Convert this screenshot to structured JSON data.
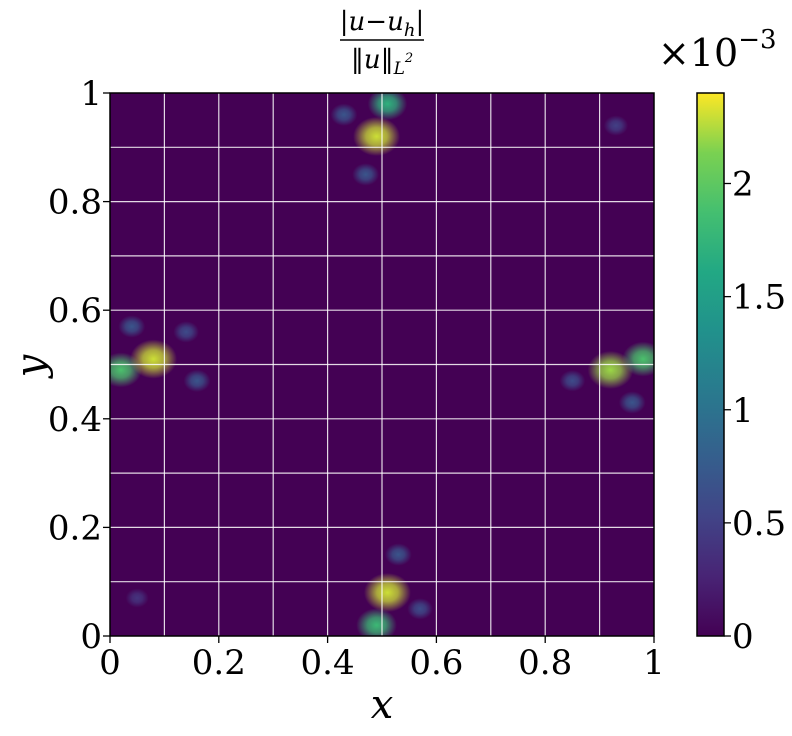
{
  "chart_data": {
    "type": "heatmap",
    "title": "|u−u_h| / ‖u‖_{L²}",
    "title_parts": {
      "numerator": "|u−u",
      "numerator_sub": "h",
      "numerator_end": "|",
      "denominator": "‖u‖",
      "denominator_sub": "L",
      "denominator_sup": "2"
    },
    "xlabel": "x",
    "ylabel": "y",
    "xlim": [
      0,
      1
    ],
    "ylim": [
      0,
      1
    ],
    "x_ticks": [
      0,
      0.2,
      0.4,
      0.6,
      0.8,
      1
    ],
    "x_tick_labels": [
      "0",
      "0.2",
      "0.4",
      "0.6",
      "0.8",
      "1"
    ],
    "y_ticks": [
      0,
      0.2,
      0.4,
      0.6,
      0.8,
      1
    ],
    "y_tick_labels": [
      "0",
      "0.2",
      "0.4",
      "0.6",
      "0.8",
      "1"
    ],
    "grid": true,
    "grid_lines_x": [
      0.1,
      0.2,
      0.3,
      0.4,
      0.5,
      0.6,
      0.7,
      0.8,
      0.9
    ],
    "grid_lines_y": [
      0.1,
      0.2,
      0.3,
      0.4,
      0.5,
      0.6,
      0.7,
      0.8,
      0.9
    ],
    "grid_color": "#ffffff",
    "colormap": "viridis",
    "colorbar": {
      "range": [
        0,
        2.4
      ],
      "ticks": [
        0,
        0.5,
        1,
        1.5,
        2
      ],
      "tick_labels": [
        "0",
        "0.5",
        "1",
        "1.5",
        "2"
      ],
      "multiplier_base": "×10",
      "multiplier_exp": "−3",
      "placement": "right"
    },
    "hotspots": [
      {
        "x": 0.02,
        "y": 0.49,
        "value": 1.9
      },
      {
        "x": 0.08,
        "y": 0.51,
        "value": 2.3
      },
      {
        "x": 0.04,
        "y": 0.57,
        "value": 0.7
      },
      {
        "x": 0.16,
        "y": 0.47,
        "value": 0.7
      },
      {
        "x": 0.14,
        "y": 0.56,
        "value": 0.6
      },
      {
        "x": 0.92,
        "y": 0.49,
        "value": 2.2
      },
      {
        "x": 0.98,
        "y": 0.51,
        "value": 1.9
      },
      {
        "x": 0.85,
        "y": 0.47,
        "value": 0.6
      },
      {
        "x": 0.96,
        "y": 0.43,
        "value": 0.7
      },
      {
        "x": 0.49,
        "y": 0.92,
        "value": 2.3
      },
      {
        "x": 0.51,
        "y": 0.98,
        "value": 1.7
      },
      {
        "x": 0.47,
        "y": 0.85,
        "value": 0.7
      },
      {
        "x": 0.43,
        "y": 0.96,
        "value": 0.7
      },
      {
        "x": 0.51,
        "y": 0.08,
        "value": 2.3
      },
      {
        "x": 0.49,
        "y": 0.02,
        "value": 1.8
      },
      {
        "x": 0.53,
        "y": 0.15,
        "value": 0.7
      },
      {
        "x": 0.57,
        "y": 0.05,
        "value": 0.6
      },
      {
        "x": 0.93,
        "y": 0.94,
        "value": 0.5
      },
      {
        "x": 0.05,
        "y": 0.07,
        "value": 0.4
      }
    ]
  }
}
